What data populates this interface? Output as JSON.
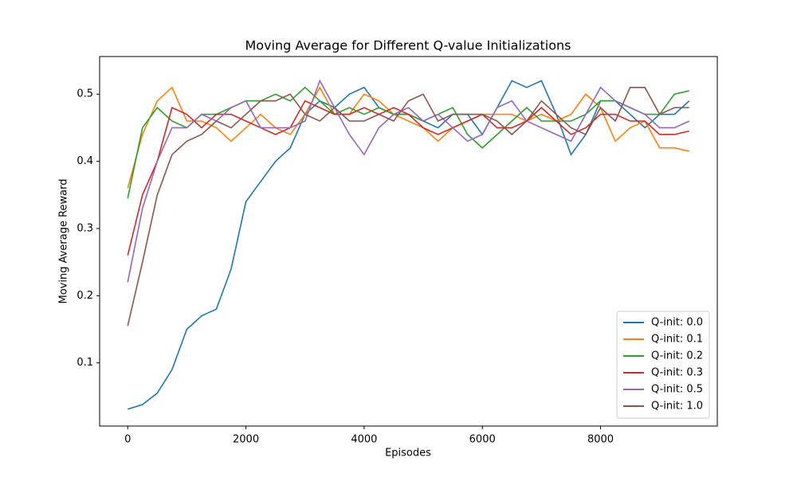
{
  "chart_data": {
    "type": "line",
    "title": "Moving Average for Different Q-value Initializations",
    "x_label": "Episodes",
    "y_label": "Moving Average Reward",
    "x": [
      0,
      250,
      500,
      750,
      1000,
      1250,
      1500,
      1750,
      2000,
      2250,
      2500,
      2750,
      3000,
      3250,
      3500,
      3750,
      4000,
      4250,
      4500,
      4750,
      5000,
      5250,
      5500,
      5750,
      6000,
      6250,
      6500,
      6750,
      7000,
      7250,
      7500,
      7750,
      8000,
      8250,
      8500,
      8750,
      9000,
      9250,
      9500
    ],
    "series": [
      {
        "name": "Q-init: 0.0",
        "color": "#1f77b4",
        "values": [
          0.031,
          0.038,
          0.055,
          0.09,
          0.15,
          0.17,
          0.18,
          0.24,
          0.34,
          0.37,
          0.4,
          0.42,
          0.47,
          0.49,
          0.48,
          0.5,
          0.51,
          0.48,
          0.47,
          0.47,
          0.46,
          0.45,
          0.47,
          0.47,
          0.44,
          0.48,
          0.52,
          0.51,
          0.52,
          0.47,
          0.41,
          0.44,
          0.49,
          0.49,
          0.47,
          0.45,
          0.47,
          0.47,
          0.49
        ]
      },
      {
        "name": "Q-init: 0.1",
        "color": "#ff7f0e",
        "values": [
          0.36,
          0.44,
          0.49,
          0.51,
          0.46,
          0.46,
          0.45,
          0.43,
          0.45,
          0.47,
          0.45,
          0.44,
          0.47,
          0.51,
          0.47,
          0.47,
          0.5,
          0.49,
          0.47,
          0.46,
          0.45,
          0.43,
          0.45,
          0.46,
          0.47,
          0.47,
          0.47,
          0.46,
          0.47,
          0.46,
          0.47,
          0.5,
          0.48,
          0.43,
          0.45,
          0.46,
          0.42,
          0.42,
          0.415
        ]
      },
      {
        "name": "Q-init: 0.2",
        "color": "#2ca02c",
        "values": [
          0.345,
          0.45,
          0.48,
          0.46,
          0.45,
          0.47,
          0.47,
          0.48,
          0.49,
          0.49,
          0.5,
          0.49,
          0.51,
          0.49,
          0.47,
          0.48,
          0.47,
          0.48,
          0.47,
          0.47,
          0.46,
          0.47,
          0.48,
          0.44,
          0.42,
          0.44,
          0.46,
          0.48,
          0.46,
          0.46,
          0.46,
          0.47,
          0.49,
          0.49,
          0.48,
          0.47,
          0.47,
          0.5,
          0.505
        ]
      },
      {
        "name": "Q-init: 0.3",
        "color": "#d62728",
        "values": [
          0.26,
          0.35,
          0.4,
          0.48,
          0.47,
          0.45,
          0.47,
          0.47,
          0.46,
          0.45,
          0.44,
          0.45,
          0.49,
          0.48,
          0.47,
          0.47,
          0.48,
          0.47,
          0.48,
          0.47,
          0.45,
          0.44,
          0.45,
          0.46,
          0.47,
          0.45,
          0.45,
          0.46,
          0.48,
          0.46,
          0.44,
          0.45,
          0.47,
          0.47,
          0.46,
          0.46,
          0.44,
          0.44,
          0.445
        ]
      },
      {
        "name": "Q-init: 0.5",
        "color": "#9467bd",
        "values": [
          0.22,
          0.33,
          0.4,
          0.45,
          0.45,
          0.47,
          0.46,
          0.48,
          0.49,
          0.45,
          0.45,
          0.45,
          0.46,
          0.52,
          0.48,
          0.44,
          0.41,
          0.45,
          0.47,
          0.48,
          0.46,
          0.47,
          0.45,
          0.43,
          0.44,
          0.48,
          0.49,
          0.46,
          0.45,
          0.44,
          0.43,
          0.47,
          0.51,
          0.49,
          0.48,
          0.47,
          0.45,
          0.45,
          0.46
        ]
      },
      {
        "name": "Q-init: 1.0",
        "color": "#8c564b",
        "values": [
          0.155,
          0.25,
          0.35,
          0.41,
          0.43,
          0.44,
          0.46,
          0.45,
          0.47,
          0.49,
          0.49,
          0.5,
          0.47,
          0.46,
          0.48,
          0.46,
          0.46,
          0.47,
          0.46,
          0.49,
          0.5,
          0.46,
          0.47,
          0.47,
          0.47,
          0.46,
          0.44,
          0.46,
          0.49,
          0.47,
          0.45,
          0.44,
          0.48,
          0.46,
          0.51,
          0.51,
          0.47,
          0.48,
          0.48
        ]
      }
    ],
    "xlim": [
      -475,
      9975
    ],
    "ylim": [
      0.006,
      0.556
    ],
    "xticks": [
      0,
      2000,
      4000,
      6000,
      8000
    ],
    "yticks": [
      0.1,
      0.2,
      0.3,
      0.4,
      0.5
    ],
    "legend": "lower right"
  }
}
